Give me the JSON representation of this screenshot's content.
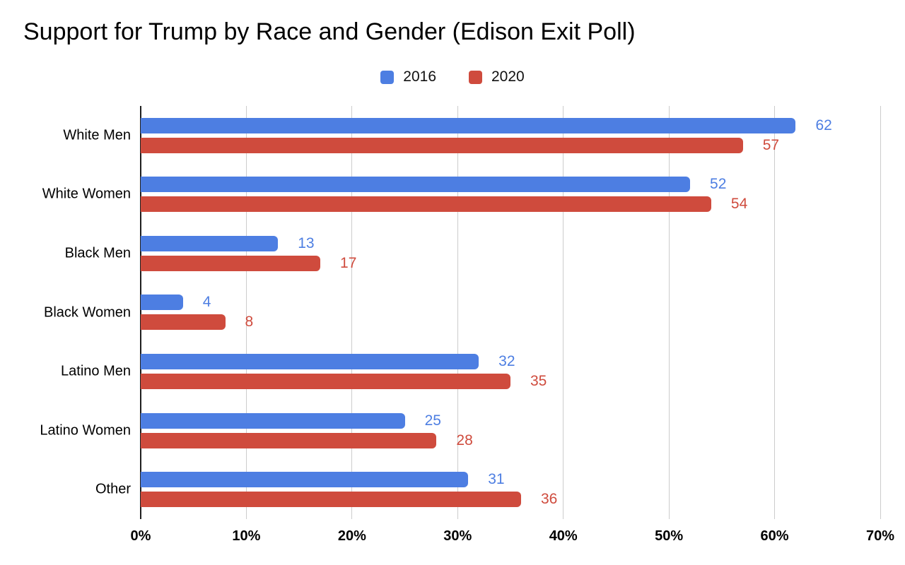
{
  "page": {
    "background": "#ffffff",
    "axis_color": "#1f1f1f",
    "gridline_color": "#cccccc",
    "text_color": "#000000"
  },
  "chart_data": {
    "type": "bar",
    "orientation": "horizontal",
    "title": "Support for Trump by Race and Gender (Edison Exit Poll)",
    "categories": [
      "White Men",
      "White Women",
      "Black Men",
      "Black Women",
      "Latino Men",
      "Latino Women",
      "Other"
    ],
    "series": [
      {
        "name": "2016",
        "color": "#4D7EE2",
        "values": [
          62,
          52,
          13,
          4,
          32,
          25,
          31
        ]
      },
      {
        "name": "2020",
        "color": "#CF4B3D",
        "values": [
          57,
          54,
          17,
          8,
          35,
          28,
          36
        ]
      }
    ],
    "xlabel": "",
    "ylabel": "",
    "xlim": [
      0,
      70
    ],
    "x_ticks": [
      "0%",
      "10%",
      "20%",
      "30%",
      "40%",
      "50%",
      "60%",
      "70%"
    ],
    "grid": true,
    "legend_position": "top-center",
    "value_labels": true
  }
}
